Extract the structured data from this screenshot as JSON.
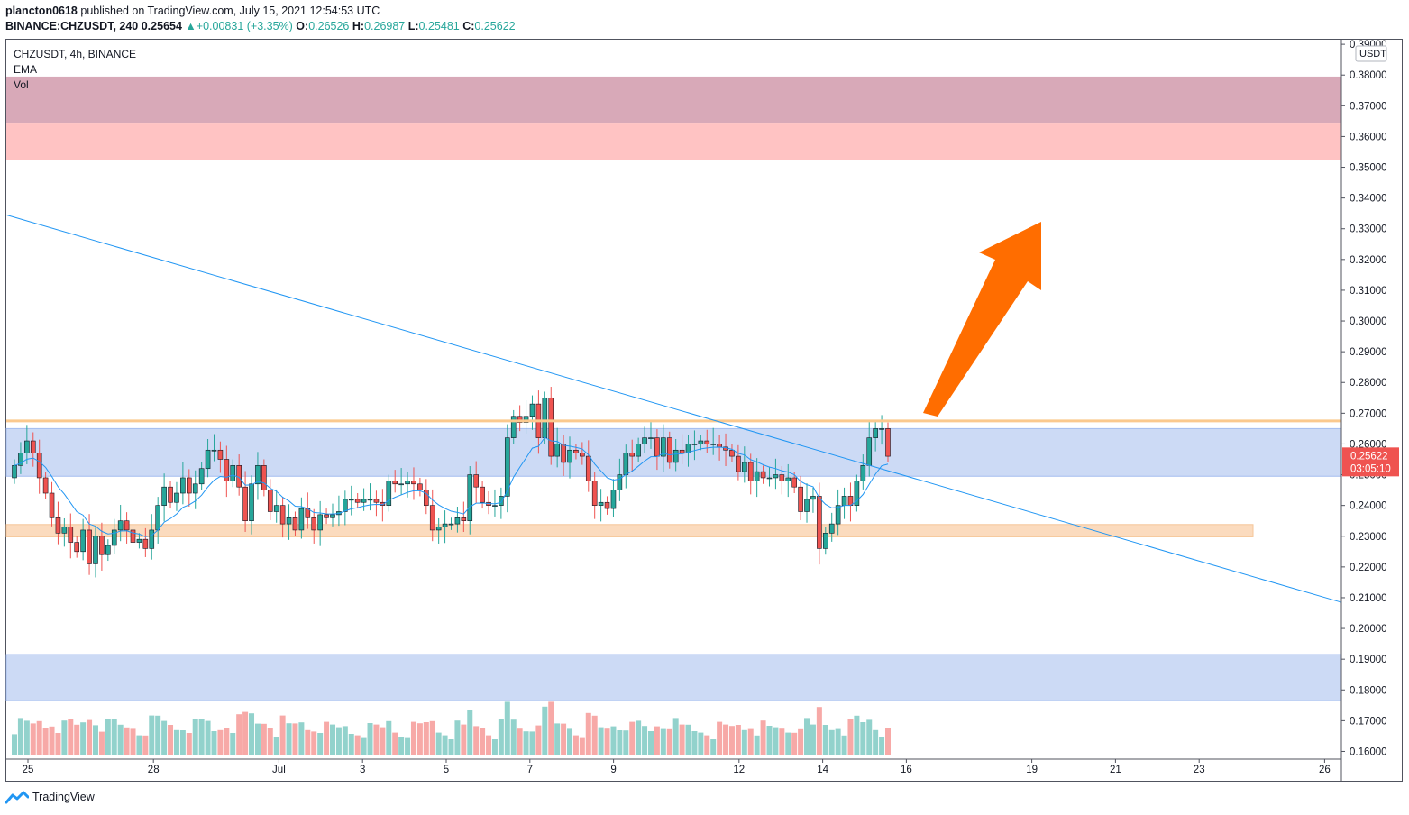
{
  "header": {
    "author": "plancton0618",
    "published": "published on TradingView.com, July 15, 2021 12:54:53 UTC",
    "symbol": "BINANCE:CHZUSDT, 240",
    "last": "0.25654",
    "change": "+0.00831 (+3.35%)",
    "o_label": "O:",
    "o": "0.26526",
    "h_label": "H:",
    "h": "0.26987",
    "l_label": "L:",
    "l": "0.25481",
    "c_label": "C:",
    "c": "0.25622"
  },
  "legend": {
    "title": "CHZUSDT, 4h, BINANCE",
    "ema": "EMA",
    "vol": "Vol"
  },
  "footer": {
    "brand": "TradingView"
  },
  "colors": {
    "bull": "#26a69a",
    "bear": "#ef5350",
    "trendline": "#2196f3",
    "ema": "#2196f3",
    "zone_top_dark": "#d4a0b0",
    "zone_top_light": "#ffbcbc",
    "zone_blue": "#c7d7f5",
    "zone_orange": "#fbd8b8",
    "resistance_line": "#fbc98e",
    "arrow": "#ff6d00"
  },
  "chart_data": {
    "type": "candlestick",
    "currency": "USDT",
    "ylim": [
      0.1575,
      0.3915
    ],
    "y_ticks": [
      "0.16000",
      "0.17000",
      "0.18000",
      "0.19000",
      "0.20000",
      "0.21000",
      "0.22000",
      "0.23000",
      "0.24000",
      "0.25000",
      "0.26000",
      "0.27000",
      "0.28000",
      "0.29000",
      "0.30000",
      "0.31000",
      "0.32000",
      "0.33000",
      "0.34000",
      "0.35000",
      "0.36000",
      "0.37000",
      "0.38000",
      "0.39000"
    ],
    "x_ticks": [
      {
        "label": "25",
        "day": 0
      },
      {
        "label": "28",
        "day": 3
      },
      {
        "label": "Jul",
        "day": 6
      },
      {
        "label": "3",
        "day": 8
      },
      {
        "label": "5",
        "day": 10
      },
      {
        "label": "7",
        "day": 12
      },
      {
        "label": "9",
        "day": 14
      },
      {
        "label": "12",
        "day": 17
      },
      {
        "label": "14",
        "day": 19
      },
      {
        "label": "16",
        "day": 21
      },
      {
        "label": "19",
        "day": 24
      },
      {
        "label": "21",
        "day": 26
      },
      {
        "label": "23",
        "day": 28
      },
      {
        "label": "26",
        "day": 31
      }
    ],
    "last_price_label": "0.25622",
    "countdown": "03:05:10",
    "candles_close": [
      0.253,
      0.257,
      0.261,
      0.257,
      0.249,
      0.244,
      0.236,
      0.231,
      0.233,
      0.228,
      0.225,
      0.232,
      0.221,
      0.23,
      0.224,
      0.227,
      0.232,
      0.235,
      0.232,
      0.228,
      0.229,
      0.226,
      0.232,
      0.24,
      0.246,
      0.241,
      0.244,
      0.249,
      0.244,
      0.247,
      0.252,
      0.258,
      0.258,
      0.255,
      0.248,
      0.253,
      0.246,
      0.235,
      0.247,
      0.253,
      0.245,
      0.238,
      0.24,
      0.234,
      0.236,
      0.232,
      0.239,
      0.236,
      0.232,
      0.237,
      0.236,
      0.237,
      0.238,
      0.242,
      0.242,
      0.241,
      0.242,
      0.242,
      0.241,
      0.24,
      0.248,
      0.247,
      0.247,
      0.248,
      0.247,
      0.245,
      0.24,
      0.232,
      0.233,
      0.234,
      0.234,
      0.236,
      0.235,
      0.25,
      0.246,
      0.241,
      0.24,
      0.24,
      0.243,
      0.262,
      0.269,
      0.267,
      0.269,
      0.273,
      0.262,
      0.275,
      0.256,
      0.26,
      0.254,
      0.258,
      0.257,
      0.256,
      0.248,
      0.24,
      0.241,
      0.239,
      0.245,
      0.25,
      0.257,
      0.256,
      0.26,
      0.262,
      0.262,
      0.256,
      0.262,
      0.254,
      0.258,
      0.257,
      0.26,
      0.26,
      0.261,
      0.26,
      0.26,
      0.259,
      0.258,
      0.256,
      0.251,
      0.254,
      0.248,
      0.251,
      0.249,
      0.249,
      0.25,
      0.248,
      0.249,
      0.246,
      0.238,
      0.242,
      0.243,
      0.226,
      0.231,
      0.234,
      0.24,
      0.243,
      0.24,
      0.248,
      0.253,
      0.262,
      0.265,
      0.265,
      0.256
    ],
    "volume_max_label": "",
    "zones": [
      {
        "name": "resistance-zone-upper",
        "from": 0.3645,
        "to": 0.3795
      },
      {
        "name": "resistance-zone-lower",
        "from": 0.3525,
        "to": 0.3645
      },
      {
        "name": "range-zone-blue",
        "from": 0.2495,
        "to": 0.265
      },
      {
        "name": "support-zone-orange",
        "from": 0.2298,
        "to": 0.2338
      },
      {
        "name": "volume-zone-blue",
        "from": 0.1765,
        "to": 0.1915
      }
    ],
    "resistance_line": 0.2675,
    "trendline": {
      "from": [
        0,
        0.3345
      ],
      "to": [
        32.2,
        0.2085
      ]
    }
  }
}
